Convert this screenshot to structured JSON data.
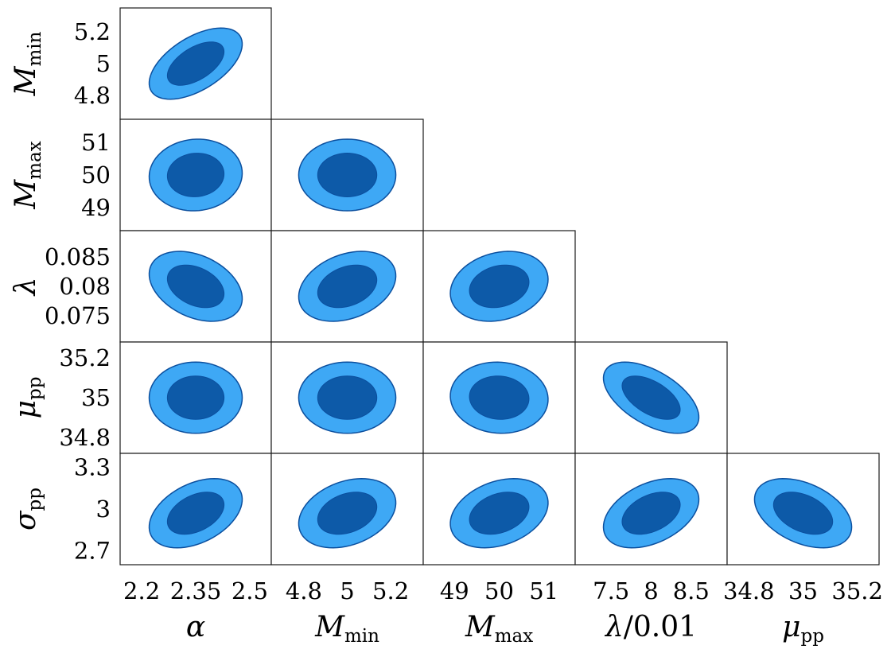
{
  "chart_data": {
    "type": "corner",
    "params": [
      {
        "key": "alpha",
        "symbol": "α",
        "sub": "",
        "tail": "",
        "ticks": [
          "2.2",
          "2.35",
          "2.5"
        ],
        "range": [
          2.14,
          2.56
        ],
        "center": 2.35,
        "sigma": 0.052
      },
      {
        "key": "Mmin",
        "symbol": "M",
        "sub": "min",
        "tail": "",
        "ticks": [
          "4.8",
          "5",
          "5.2"
        ],
        "range": [
          4.65,
          5.35
        ],
        "center": 5.0,
        "sigma": 0.09
      },
      {
        "key": "Mmax",
        "symbol": "M",
        "sub": "max",
        "tail": "",
        "ticks": [
          "49",
          "50",
          "51"
        ],
        "range": [
          48.3,
          51.7
        ],
        "center": 50.0,
        "sigma": 0.44
      },
      {
        "key": "lambda",
        "symbol": "λ",
        "sub": "",
        "tail": "",
        "ticks": [
          "0.075",
          "0.08",
          "0.085"
        ],
        "range": [
          0.0705,
          0.0895
        ],
        "center": 0.08,
        "sigma": 0.0024
      },
      {
        "key": "mu_pp",
        "symbol": "μ",
        "sub": "pp",
        "tail": "",
        "ticks": [
          "34.8",
          "35",
          "35.2"
        ],
        "range": [
          34.72,
          35.28
        ],
        "center": 35.0,
        "sigma": 0.072
      },
      {
        "key": "sigma_pp",
        "symbol": "σ",
        "sub": "pp",
        "tail": "",
        "ticks": [
          "2.7",
          "3",
          "3.3"
        ],
        "range": [
          2.6,
          3.4
        ],
        "center": 2.97,
        "sigma": 0.1
      }
    ],
    "x_params": [
      {
        "param": 0,
        "symbol": "α",
        "sub": "",
        "tail": "",
        "ticks": [
          "2.2",
          "2.35",
          "2.5"
        ],
        "tick_values": [
          2.2,
          2.35,
          2.5
        ]
      },
      {
        "param": 1,
        "symbol": "M",
        "sub": "min",
        "tail": "",
        "ticks": [
          "4.8",
          "5",
          "5.2"
        ],
        "tick_values": [
          4.8,
          5.0,
          5.2
        ]
      },
      {
        "param": 2,
        "symbol": "M",
        "sub": "max",
        "tail": "",
        "ticks": [
          "49",
          "50",
          "51"
        ],
        "tick_values": [
          49,
          50,
          51
        ]
      },
      {
        "param": 3,
        "symbol": "λ",
        "sub": "",
        "tail": "/0.01",
        "ticks": [
          "7.5",
          "8",
          "8.5"
        ],
        "tick_values": [
          0.075,
          0.08,
          0.085
        ]
      },
      {
        "param": 4,
        "symbol": "μ",
        "sub": "pp",
        "tail": "",
        "ticks": [
          "34.8",
          "35",
          "35.2"
        ],
        "tick_values": [
          34.8,
          35.0,
          35.2
        ]
      }
    ],
    "y_params": [
      {
        "param": 1,
        "symbol": "M",
        "sub": "min",
        "ticks": [
          "4.8",
          "5",
          "5.2"
        ],
        "tick_values": [
          4.8,
          5.0,
          5.2
        ]
      },
      {
        "param": 2,
        "symbol": "M",
        "sub": "max",
        "ticks": [
          "49",
          "50",
          "51"
        ],
        "tick_values": [
          49,
          50,
          51
        ]
      },
      {
        "param": 3,
        "symbol": "λ",
        "sub": "",
        "ticks": [
          "0.075",
          "0.08",
          "0.085"
        ],
        "tick_values": [
          0.075,
          0.08,
          0.085
        ]
      },
      {
        "param": 4,
        "symbol": "μ",
        "sub": "pp",
        "ticks": [
          "34.8",
          "35",
          "35.2"
        ],
        "tick_values": [
          34.8,
          35.0,
          35.2
        ]
      },
      {
        "param": 5,
        "symbol": "σ",
        "sub": "pp",
        "ticks": [
          "2.7",
          "3",
          "3.3"
        ],
        "tick_values": [
          2.7,
          3.0,
          3.3
        ]
      }
    ],
    "correlations": [
      {
        "x": 0,
        "y": 1,
        "rho": 0.55
      },
      {
        "x": 0,
        "y": 2,
        "rho": 0.05
      },
      {
        "x": 1,
        "y": 2,
        "rho": 0.0
      },
      {
        "x": 0,
        "y": 3,
        "rho": -0.35
      },
      {
        "x": 1,
        "y": 3,
        "rho": 0.3
      },
      {
        "x": 2,
        "y": 3,
        "rho": 0.2
      },
      {
        "x": 0,
        "y": 4,
        "rho": 0.0
      },
      {
        "x": 1,
        "y": 4,
        "rho": 0.0
      },
      {
        "x": 2,
        "y": 4,
        "rho": -0.05
      },
      {
        "x": 3,
        "y": 4,
        "rho": -0.55
      },
      {
        "x": 0,
        "y": 5,
        "rho": 0.4
      },
      {
        "x": 1,
        "y": 5,
        "rho": 0.3
      },
      {
        "x": 2,
        "y": 5,
        "rho": 0.3
      },
      {
        "x": 3,
        "y": 5,
        "rho": 0.4
      },
      {
        "x": 4,
        "y": 5,
        "rho": -0.4
      }
    ],
    "contour_levels": [
      "1-sigma",
      "2-sigma"
    ],
    "colors": {
      "inner": "#0d5aa8",
      "outer": "#3ea8f5",
      "edge": "#0b4f9e",
      "frame": "#1a1a1a",
      "background": "#ffffff"
    },
    "grid": false,
    "legend": "none",
    "title": ""
  }
}
